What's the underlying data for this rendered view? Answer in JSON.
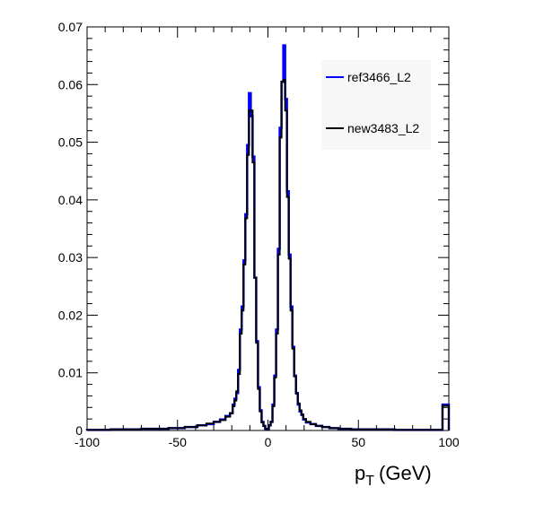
{
  "chart_data": {
    "type": "line",
    "subtype": "histogram-step",
    "title": "",
    "xlabel": "p_T (GeV)",
    "xlabel_main": "p",
    "xlabel_sub": "T",
    "xlabel_unit": "(GeV)",
    "ylabel": "",
    "xlim": [
      -100,
      100
    ],
    "ylim": [
      0,
      0.07
    ],
    "x_ticks": [
      -100,
      -50,
      0,
      50,
      100
    ],
    "x_tick_labels": [
      "-100",
      "-50",
      "0",
      "50",
      "100"
    ],
    "y_ticks": [
      0,
      0.01,
      0.02,
      0.03,
      0.04,
      0.05,
      0.06,
      0.07
    ],
    "y_tick_labels": [
      "0",
      "0.01",
      "0.02",
      "0.03",
      "0.04",
      "0.05",
      "0.06",
      "0.07"
    ],
    "grid": false,
    "legend_position": "top-right",
    "x": [
      -94,
      -80,
      -60,
      -50,
      -42,
      -36,
      -32,
      -28,
      -25,
      -22,
      -20,
      -19,
      -18,
      -17,
      -16,
      -15,
      -14,
      -13,
      -12,
      -11,
      -10,
      -9,
      -8,
      -7,
      -6,
      -5,
      -4,
      -3,
      -2,
      -1,
      0,
      1,
      2,
      3,
      4,
      5,
      6,
      7,
      8,
      9,
      10,
      11,
      12,
      13,
      14,
      15,
      16,
      17,
      18,
      19,
      20,
      22,
      25,
      28,
      32,
      36,
      42,
      50,
      60,
      80,
      94,
      99
    ],
    "series": [
      {
        "name": "ref3466_L2",
        "color": "#0000ff",
        "values": [
          0.0001,
          0.0002,
          0.0003,
          0.0004,
          0.0006,
          0.0009,
          0.0011,
          0.0015,
          0.0019,
          0.0025,
          0.003,
          0.0045,
          0.0055,
          0.0065,
          0.0105,
          0.0175,
          0.0215,
          0.0295,
          0.0375,
          0.0495,
          0.0585,
          0.0545,
          0.0475,
          0.0265,
          0.0155,
          0.0075,
          0.0035,
          0.0015,
          0.0008,
          0.0003,
          0.0002,
          0.0009,
          0.0015,
          0.0045,
          0.0095,
          0.0175,
          0.0315,
          0.0525,
          0.0605,
          0.0668,
          0.0575,
          0.0415,
          0.0305,
          0.0215,
          0.0145,
          0.0095,
          0.0065,
          0.0045,
          0.0033,
          0.0027,
          0.0019,
          0.0014,
          0.0011,
          0.0008,
          0.0006,
          0.0004,
          0.0003,
          0.0002,
          0.0002,
          0.0001,
          0.0001,
          0.0045
        ]
      },
      {
        "name": "new3483_L2",
        "color": "#000000",
        "values": [
          0.0001,
          0.0002,
          0.0003,
          0.0004,
          0.0006,
          0.0009,
          0.0012,
          0.0015,
          0.0018,
          0.0024,
          0.003,
          0.0042,
          0.0052,
          0.0068,
          0.0098,
          0.0168,
          0.0208,
          0.0288,
          0.0368,
          0.0478,
          0.0555,
          0.0555,
          0.0465,
          0.0265,
          0.0152,
          0.0072,
          0.0033,
          0.0014,
          0.0008,
          0.0003,
          0.0002,
          0.0009,
          0.0015,
          0.0042,
          0.0092,
          0.0168,
          0.0305,
          0.0508,
          0.0605,
          0.0608,
          0.0555,
          0.0405,
          0.0298,
          0.0208,
          0.0142,
          0.0094,
          0.0064,
          0.0047,
          0.0035,
          0.0028,
          0.002,
          0.0015,
          0.0011,
          0.0008,
          0.0006,
          0.0004,
          0.0003,
          0.0002,
          0.0002,
          0.0001,
          0.0001,
          0.0043
        ]
      }
    ]
  }
}
